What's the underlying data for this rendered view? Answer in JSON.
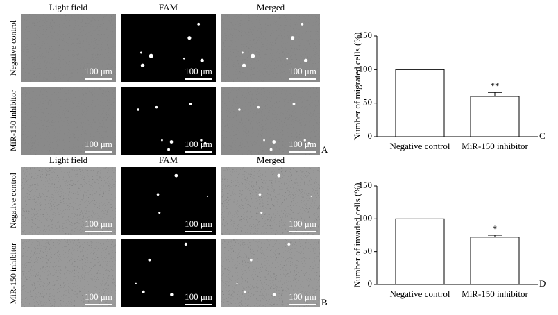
{
  "figure": {
    "panels": [
      {
        "label": "A",
        "columns": [
          "Light field",
          "FAM",
          "Merged"
        ],
        "rows": [
          "Negative control",
          "MiR-150 inhibitor"
        ],
        "scale_bar": "100 μm"
      },
      {
        "label": "B",
        "columns": [
          "Light field",
          "FAM",
          "Merged"
        ],
        "rows": [
          "Negative control",
          "MiR-150 inhibitor"
        ],
        "scale_bar": "100 μm"
      }
    ]
  },
  "chart_data": [
    {
      "type": "bar",
      "panel_label": "C",
      "y_label": "Number of migrated cells (%)",
      "categories": [
        "Negative control",
        "MiR-150 inhibitor"
      ],
      "values": [
        100,
        60
      ],
      "errors": [
        0,
        6
      ],
      "significance": [
        null,
        "**"
      ],
      "color": "#ffffff",
      "ylim": [
        0,
        150
      ],
      "yticks": [
        0,
        50,
        100,
        150
      ]
    },
    {
      "type": "bar",
      "panel_label": "D",
      "y_label": "Number of invaded cells (%)",
      "categories": [
        "Negative control",
        "MiR-150 inhibitor"
      ],
      "values": [
        100,
        72
      ],
      "errors": [
        0,
        3
      ],
      "significance": [
        null,
        "*"
      ],
      "color": "#ffffff",
      "ylim": [
        0,
        150
      ],
      "yticks": [
        0,
        50,
        100,
        150
      ]
    }
  ]
}
